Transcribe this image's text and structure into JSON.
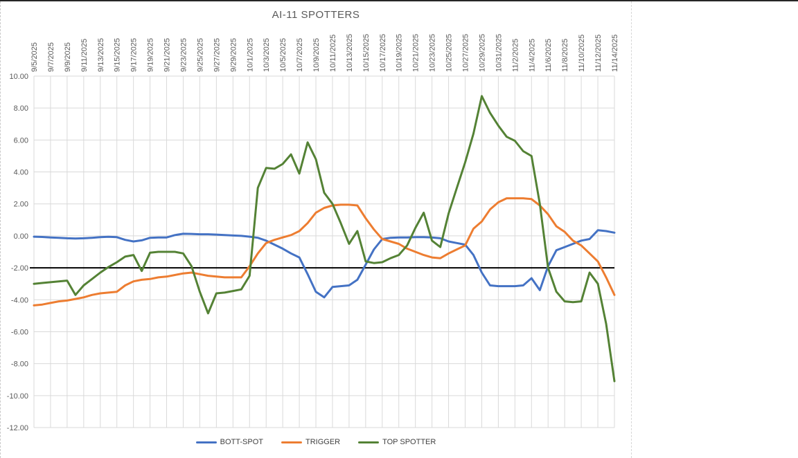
{
  "title": "AI-11 SPOTTERS",
  "chart_data": {
    "type": "line",
    "title": "AI-11 SPOTTERS",
    "x_tick_labels": [
      "9/5/2025",
      "9/7/2025",
      "9/9/2025",
      "9/11/2025",
      "9/13/2025",
      "9/15/2025",
      "9/17/2025",
      "9/19/2025",
      "9/21/2025",
      "9/23/2025",
      "9/25/2025",
      "9/27/2025",
      "9/29/2025",
      "10/1/2025",
      "10/3/2025",
      "10/5/2025",
      "10/7/2025",
      "10/9/2025",
      "10/11/2025",
      "10/13/2025",
      "10/15/2025",
      "10/17/2025",
      "10/19/2025",
      "10/21/2025",
      "10/23/2025",
      "10/25/2025",
      "10/27/2025",
      "10/29/2025",
      "10/31/2025",
      "11/2/2025",
      "11/4/2025",
      "11/6/2025",
      "11/8/2025",
      "11/10/2025",
      "11/12/2025",
      "11/14/2025"
    ],
    "x_points_per_tick": 2,
    "y_tick_labels": [
      "10.00",
      "8.00",
      "6.00",
      "4.00",
      "2.00",
      "0.00",
      "-2.00",
      "-4.00",
      "-6.00",
      "-8.00",
      "-10.00",
      "-12.00"
    ],
    "ylim": [
      -12,
      10
    ],
    "y_step": 2,
    "grid": true,
    "gridline_color": "#d9d9d9",
    "baseline": {
      "value": -2.0,
      "color": "#000000",
      "width": 2
    },
    "legend_position": "bottom",
    "legend": [
      "BOTT-SPOT",
      "TRIGGER",
      "TOP SPOTTER"
    ],
    "series": [
      {
        "name": "BOTT-SPOT",
        "color": "#4472c4",
        "values": [
          -0.05,
          -0.07,
          -0.1,
          -0.12,
          -0.15,
          -0.17,
          -0.15,
          -0.12,
          -0.08,
          -0.06,
          -0.08,
          -0.25,
          -0.35,
          -0.28,
          -0.12,
          -0.1,
          -0.1,
          0.05,
          0.13,
          0.12,
          0.1,
          0.1,
          0.08,
          0.05,
          0.02,
          0.0,
          -0.05,
          -0.12,
          -0.3,
          -0.55,
          -0.8,
          -1.1,
          -1.35,
          -2.4,
          -3.5,
          -3.85,
          -3.2,
          -3.15,
          -3.1,
          -2.75,
          -1.8,
          -0.85,
          -0.2,
          -0.12,
          -0.1,
          -0.1,
          -0.08,
          -0.08,
          -0.1,
          -0.15,
          -0.35,
          -0.45,
          -0.55,
          -1.2,
          -2.3,
          -3.1,
          -3.15,
          -3.15,
          -3.15,
          -3.1,
          -2.65,
          -3.4,
          -1.9,
          -0.9,
          -0.7,
          -0.5,
          -0.3,
          -0.2,
          0.35,
          0.3,
          0.2
        ]
      },
      {
        "name": "TRIGGER",
        "color": "#ed7d31",
        "values": [
          -4.35,
          -4.3,
          -4.2,
          -4.1,
          -4.05,
          -3.95,
          -3.85,
          -3.7,
          -3.6,
          -3.55,
          -3.5,
          -3.1,
          -2.85,
          -2.75,
          -2.7,
          -2.6,
          -2.55,
          -2.45,
          -2.35,
          -2.3,
          -2.4,
          -2.5,
          -2.55,
          -2.6,
          -2.6,
          -2.6,
          -1.9,
          -1.1,
          -0.45,
          -0.25,
          -0.1,
          0.05,
          0.3,
          0.8,
          1.45,
          1.75,
          1.9,
          1.95,
          1.95,
          1.9,
          1.1,
          0.4,
          -0.2,
          -0.35,
          -0.5,
          -0.8,
          -1.0,
          -1.2,
          -1.35,
          -1.4,
          -1.1,
          -0.85,
          -0.6,
          0.45,
          0.9,
          1.65,
          2.1,
          2.35,
          2.35,
          2.35,
          2.3,
          1.9,
          1.35,
          0.6,
          0.25,
          -0.3,
          -0.6,
          -1.1,
          -1.6,
          -2.6,
          -3.7
        ]
      },
      {
        "name": "TOP SPOTTER",
        "color": "#548235",
        "values": [
          -3.0,
          -2.95,
          -2.9,
          -2.85,
          -2.8,
          -3.7,
          -3.1,
          -2.7,
          -2.3,
          -1.95,
          -1.65,
          -1.3,
          -1.2,
          -2.2,
          -1.05,
          -1.0,
          -1.0,
          -1.0,
          -1.1,
          -1.9,
          -3.5,
          -4.85,
          -3.6,
          -3.55,
          -3.45,
          -3.35,
          -2.5,
          3.0,
          4.25,
          4.2,
          4.5,
          5.1,
          3.9,
          5.85,
          4.8,
          2.7,
          2.0,
          0.8,
          -0.5,
          0.3,
          -1.6,
          -1.7,
          -1.65,
          -1.4,
          -1.2,
          -0.6,
          0.5,
          1.45,
          -0.3,
          -0.7,
          1.4,
          3.0,
          4.6,
          6.4,
          8.75,
          7.7,
          6.9,
          6.2,
          5.95,
          5.3,
          5.0,
          2.0,
          -2.0,
          -3.5,
          -4.1,
          -4.15,
          -4.1,
          -2.3,
          -3.0,
          -5.5,
          -9.1
        ]
      }
    ]
  }
}
